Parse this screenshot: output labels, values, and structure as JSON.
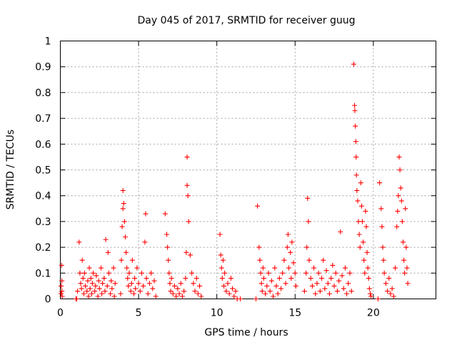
{
  "chart_data": {
    "type": "scatter",
    "title": "Day 045 of 2017, SRMTID for receiver guug",
    "xlabel": "GPS time / hours",
    "ylabel": "SRMTID / TECUs",
    "xlim": [
      0,
      24
    ],
    "ylim": [
      0,
      1
    ],
    "x_ticks": [
      0,
      5,
      10,
      15,
      20
    ],
    "y_ticks": [
      0,
      0.1,
      0.2,
      0.3,
      0.4,
      0.5,
      0.6,
      0.7,
      0.8,
      0.9,
      1
    ],
    "x_tick_labels": [
      "0",
      "5",
      "10",
      "15",
      "20"
    ],
    "y_tick_labels": [
      "0",
      "0.1",
      "0.2",
      "0.3",
      "0.4",
      "0.5",
      "0.6",
      "0.7",
      "0.8",
      "0.9",
      "1"
    ],
    "grid": true,
    "marker": "plus",
    "marker_color": "#ff0000",
    "series": [
      {
        "x": [
          0.05,
          0.05,
          0.08,
          0.1,
          0.1,
          0.12,
          1.0,
          1.05,
          1.1,
          1.2,
          1.25,
          1.3,
          1.35,
          1.4,
          1.45,
          1.5,
          1.55,
          1.6,
          1.7,
          1.75,
          1.8,
          1.85,
          1.9,
          1.95,
          2.0,
          2.05,
          2.1,
          2.2,
          2.25,
          2.3,
          2.4,
          2.45,
          2.5,
          2.6,
          2.65,
          2.7,
          2.8,
          2.85,
          2.9,
          3.0,
          3.05,
          3.1,
          3.2,
          3.25,
          3.3,
          3.4,
          3.45,
          3.5,
          3.85,
          3.9,
          3.95,
          4.0,
          4.0,
          4.05,
          4.1,
          4.15,
          4.2,
          4.25,
          4.3,
          4.35,
          4.4,
          4.5,
          4.55,
          4.6,
          4.7,
          4.75,
          4.8,
          4.9,
          5.0,
          5.1,
          5.2,
          5.3,
          5.4,
          5.45,
          5.5,
          5.6,
          5.7,
          5.8,
          5.9,
          6.0,
          6.1,
          6.7,
          6.8,
          6.85,
          6.9,
          6.95,
          7.0,
          7.05,
          7.1,
          7.2,
          7.3,
          7.4,
          7.5,
          7.6,
          7.7,
          7.8,
          7.9,
          8.0,
          8.05,
          8.1,
          8.1,
          8.15,
          8.2,
          8.3,
          8.4,
          8.5,
          8.6,
          8.7,
          8.8,
          8.9,
          9.0,
          10.2,
          10.25,
          10.3,
          10.35,
          10.4,
          10.45,
          10.5,
          10.6,
          10.7,
          10.8,
          10.9,
          11.0,
          11.1,
          11.2,
          11.3,
          11.5,
          12.5,
          12.6,
          12.7,
          12.75,
          12.8,
          12.85,
          12.9,
          12.95,
          13.0,
          13.1,
          13.2,
          13.3,
          13.4,
          13.5,
          13.6,
          13.7,
          13.8,
          13.9,
          14.0,
          14.1,
          14.2,
          14.3,
          14.4,
          14.5,
          14.55,
          14.6,
          14.7,
          14.75,
          14.8,
          14.9,
          15.0,
          15.05,
          15.6,
          15.7,
          15.75,
          15.8,
          15.85,
          15.9,
          16.0,
          16.1,
          16.2,
          16.3,
          16.4,
          16.5,
          16.6,
          16.7,
          16.8,
          16.9,
          17.0,
          17.1,
          17.2,
          17.3,
          17.4,
          17.5,
          17.6,
          17.7,
          17.8,
          17.9,
          18.0,
          18.1,
          18.2,
          18.3,
          18.4,
          18.5,
          18.6,
          18.75,
          18.8,
          18.82,
          18.85,
          18.88,
          18.9,
          18.92,
          18.95,
          19.0,
          19.05,
          19.1,
          19.15,
          19.2,
          19.25,
          19.3,
          19.35,
          19.4,
          19.45,
          19.5,
          19.55,
          19.6,
          19.65,
          19.7,
          19.75,
          19.8,
          19.85,
          20.3,
          20.4,
          20.5,
          20.55,
          20.6,
          20.65,
          20.7,
          20.8,
          20.9,
          21.0,
          21.1,
          21.2,
          21.3,
          21.4,
          21.5,
          21.55,
          21.6,
          21.65,
          21.7,
          21.75,
          21.8,
          21.85,
          21.9,
          21.95,
          22.0,
          22.05,
          22.1,
          22.15,
          22.2
        ],
        "y": [
          0.02,
          0.05,
          0.13,
          0.07,
          0.03,
          0.01,
          0.0,
          0.0,
          0.03,
          0.22,
          0.1,
          0.06,
          0.04,
          0.15,
          0.08,
          0.02,
          0.1,
          0.05,
          0.03,
          0.07,
          0.01,
          0.12,
          0.04,
          0.08,
          0.02,
          0.06,
          0.1,
          0.03,
          0.05,
          0.09,
          0.01,
          0.07,
          0.04,
          0.12,
          0.02,
          0.06,
          0.08,
          0.03,
          0.23,
          0.05,
          0.18,
          0.1,
          0.02,
          0.07,
          0.04,
          0.12,
          0.01,
          0.06,
          0.02,
          0.15,
          0.28,
          0.42,
          0.35,
          0.37,
          0.3,
          0.24,
          0.18,
          0.12,
          0.08,
          0.05,
          0.1,
          0.03,
          0.06,
          0.15,
          0.02,
          0.08,
          0.04,
          0.12,
          0.06,
          0.03,
          0.1,
          0.05,
          0.22,
          0.33,
          0.08,
          0.02,
          0.06,
          0.1,
          0.04,
          0.07,
          0.01,
          0.33,
          0.25,
          0.2,
          0.15,
          0.1,
          0.06,
          0.03,
          0.08,
          0.02,
          0.05,
          0.01,
          0.04,
          0.02,
          0.06,
          0.01,
          0.03,
          0.08,
          0.18,
          0.55,
          0.44,
          0.4,
          0.3,
          0.17,
          0.1,
          0.06,
          0.03,
          0.08,
          0.02,
          0.05,
          0.01,
          0.25,
          0.17,
          0.12,
          0.08,
          0.15,
          0.05,
          0.1,
          0.03,
          0.06,
          0.02,
          0.08,
          0.04,
          0.01,
          0.03,
          0.0,
          0.0,
          0.0,
          0.36,
          0.2,
          0.15,
          0.1,
          0.06,
          0.03,
          0.12,
          0.08,
          0.02,
          0.05,
          0.1,
          0.03,
          0.07,
          0.01,
          0.12,
          0.05,
          0.02,
          0.08,
          0.04,
          0.1,
          0.15,
          0.06,
          0.2,
          0.25,
          0.12,
          0.18,
          0.08,
          0.22,
          0.14,
          0.1,
          0.05,
          0.03,
          0.1,
          0.2,
          0.39,
          0.3,
          0.15,
          0.08,
          0.05,
          0.12,
          0.02,
          0.06,
          0.1,
          0.03,
          0.08,
          0.15,
          0.04,
          0.11,
          0.06,
          0.02,
          0.08,
          0.13,
          0.05,
          0.1,
          0.03,
          0.07,
          0.26,
          0.09,
          0.04,
          0.12,
          0.02,
          0.06,
          0.1,
          0.03,
          0.91,
          0.75,
          0.73,
          0.67,
          0.61,
          0.55,
          0.48,
          0.42,
          0.38,
          0.3,
          0.25,
          0.2,
          0.45,
          0.36,
          0.3,
          0.22,
          0.15,
          0.1,
          0.34,
          0.28,
          0.18,
          0.12,
          0.08,
          0.04,
          0.02,
          0.01,
          0.0,
          0.45,
          0.35,
          0.28,
          0.2,
          0.15,
          0.1,
          0.06,
          0.03,
          0.08,
          0.02,
          0.04,
          0.01,
          0.12,
          0.28,
          0.34,
          0.4,
          0.55,
          0.5,
          0.43,
          0.38,
          0.3,
          0.22,
          0.15,
          0.1,
          0.35,
          0.2,
          0.12,
          0.06
        ]
      }
    ]
  }
}
